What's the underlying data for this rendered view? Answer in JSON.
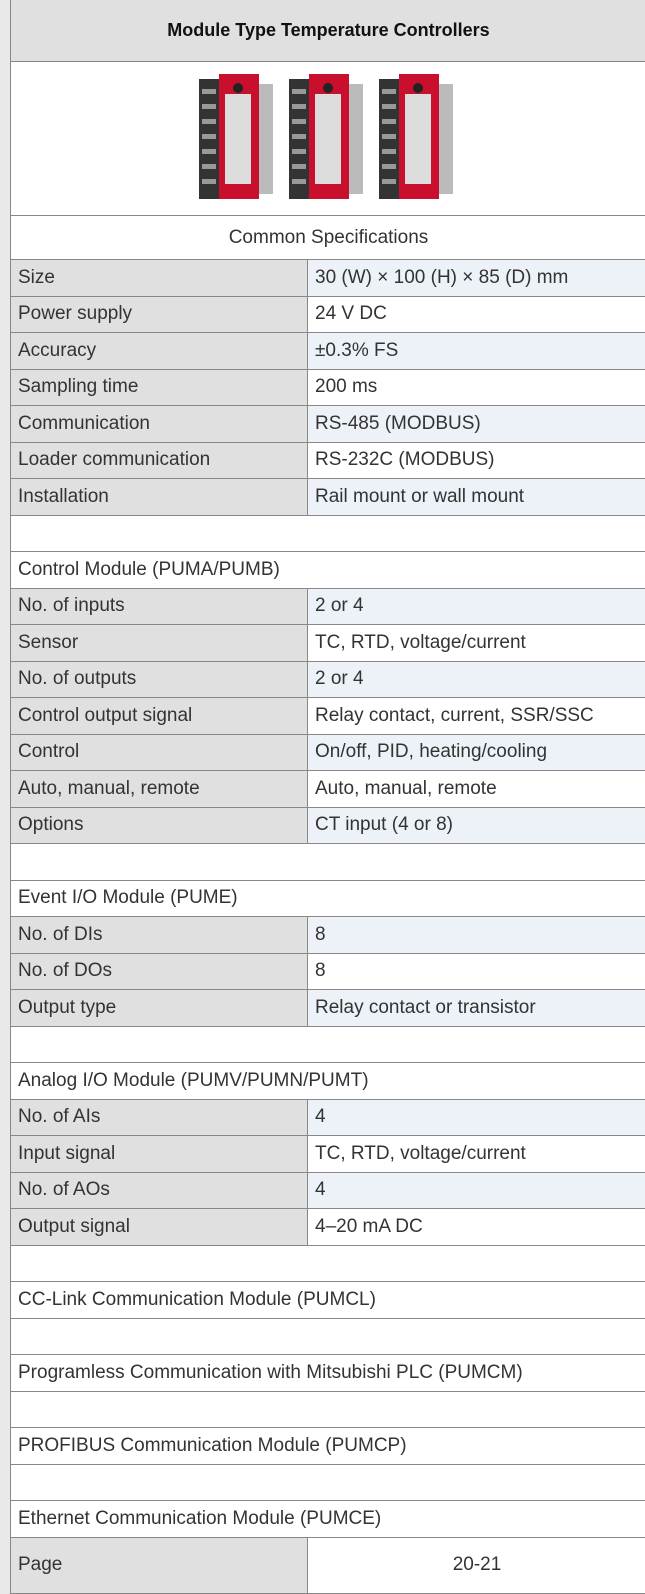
{
  "header": {
    "title": "Module Type Temperature Controllers"
  },
  "sections": [
    {
      "title": "Common Specifications",
      "rows": [
        [
          "Size",
          "30 (W) × 100 (H) × 85 (D) mm"
        ],
        [
          "Power supply",
          "24 V DC"
        ],
        [
          "Accuracy",
          "±0.3% FS"
        ],
        [
          "Sampling time",
          "200 ms"
        ],
        [
          "Communication",
          "RS-485 (MODBUS)"
        ],
        [
          "Loader communication",
          "RS-232C (MODBUS)"
        ],
        [
          "Installation",
          "Rail mount or wall mount"
        ]
      ]
    },
    {
      "title": "Control Module (PUMA/PUMB)",
      "rows": [
        [
          "No. of inputs",
          "2 or 4"
        ],
        [
          "Sensor",
          "TC, RTD, voltage/current"
        ],
        [
          "No. of outputs",
          "2 or 4"
        ],
        [
          "Control output signal",
          "Relay contact, current, SSR/SSC"
        ],
        [
          "Control",
          "On/off, PID, heating/cooling"
        ],
        [
          "Auto, manual, remote",
          "Auto, manual, remote"
        ],
        [
          "Options",
          "CT input (4 or 8)"
        ]
      ]
    },
    {
      "title": "Event I/O Module (PUME)",
      "rows": [
        [
          "No. of DIs",
          "8"
        ],
        [
          "No. of DOs",
          "8"
        ],
        [
          "Output type",
          "Relay contact or transistor"
        ]
      ]
    },
    {
      "title": "Analog I/O Module (PUMV/PUMN/PUMT)",
      "rows": [
        [
          "No. of AIs",
          "4"
        ],
        [
          "Input signal",
          "TC, RTD, voltage/current"
        ],
        [
          "No. of AOs",
          "4"
        ],
        [
          "Output signal",
          "4–20 mA DC"
        ]
      ]
    },
    {
      "title": "CC-Link Communication Module (PUMCL)",
      "rows": []
    },
    {
      "title": "Programless Communication with Mitsubishi PLC (PUMCM)",
      "rows": []
    },
    {
      "title": "PROFIBUS Communication Module (PUMCP)",
      "rows": []
    },
    {
      "title": "Ethernet Communication Module (PUMCE)",
      "rows": []
    }
  ],
  "footer": {
    "label": "Page",
    "value": "20-21"
  }
}
